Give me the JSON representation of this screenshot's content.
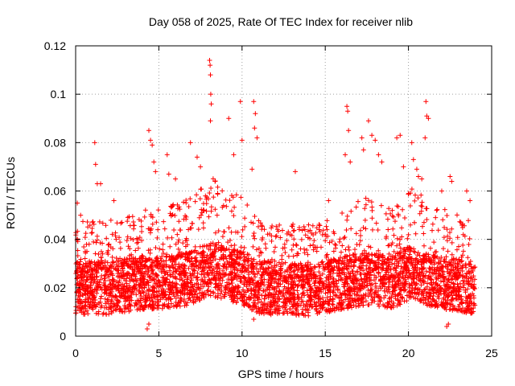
{
  "chart_data": {
    "type": "scatter",
    "title": "Day 058 of 2025, Rate Of TEC Index for receiver nlib",
    "xlabel": "GPS time / hours",
    "ylabel": "ROTI / TECUs",
    "xlim": [
      0,
      25
    ],
    "ylim": [
      0,
      0.12
    ],
    "x_ticks": [
      0,
      5,
      10,
      15,
      20,
      25
    ],
    "x_tick_labels": [
      "0",
      "5",
      "10",
      "15",
      "20",
      "25"
    ],
    "y_ticks": [
      0,
      0.02,
      0.04,
      0.06,
      0.08,
      0.1,
      0.12
    ],
    "y_tick_labels": [
      "0",
      "0.02",
      "0.04",
      "0.06",
      "0.08",
      "0.1",
      "0.12"
    ],
    "grid": true,
    "marker": "+",
    "color": "#ff0000",
    "series": [
      {
        "name": "ROTI",
        "baseline_profile": [
          [
            0.0,
            0.02
          ],
          [
            2.0,
            0.02
          ],
          [
            4.0,
            0.022
          ],
          [
            5.0,
            0.022
          ],
          [
            7.0,
            0.024
          ],
          [
            8.0,
            0.028
          ],
          [
            9.0,
            0.026
          ],
          [
            10.0,
            0.024
          ],
          [
            11.0,
            0.02
          ],
          [
            14.0,
            0.019
          ],
          [
            16.0,
            0.022
          ],
          [
            17.5,
            0.024
          ],
          [
            19.0,
            0.022
          ],
          [
            20.0,
            0.026
          ],
          [
            21.0,
            0.024
          ],
          [
            22.0,
            0.022
          ],
          [
            24.0,
            0.02
          ]
        ],
        "points": [
          [
            0.1,
            0.055
          ],
          [
            0.3,
            0.05
          ],
          [
            1.15,
            0.08
          ],
          [
            1.2,
            0.071
          ],
          [
            1.3,
            0.063
          ],
          [
            1.5,
            0.063
          ],
          [
            2.3,
            0.056
          ],
          [
            4.4,
            0.085
          ],
          [
            4.5,
            0.081
          ],
          [
            4.6,
            0.079
          ],
          [
            4.7,
            0.072
          ],
          [
            4.8,
            0.068
          ],
          [
            5.5,
            0.075
          ],
          [
            5.6,
            0.067
          ],
          [
            6.0,
            0.065
          ],
          [
            6.9,
            0.08
          ],
          [
            7.3,
            0.074
          ],
          [
            7.5,
            0.07
          ],
          [
            8.05,
            0.114
          ],
          [
            8.08,
            0.112
          ],
          [
            8.1,
            0.108
          ],
          [
            8.12,
            0.1
          ],
          [
            8.15,
            0.096
          ],
          [
            8.1,
            0.089
          ],
          [
            9.2,
            0.09
          ],
          [
            9.5,
            0.075
          ],
          [
            9.9,
            0.097
          ],
          [
            10.0,
            0.081
          ],
          [
            10.7,
            0.097
          ],
          [
            10.8,
            0.092
          ],
          [
            10.75,
            0.086
          ],
          [
            10.9,
            0.082
          ],
          [
            10.6,
            0.069
          ],
          [
            13.2,
            0.068
          ],
          [
            14.0,
            0.046
          ],
          [
            15.2,
            0.056
          ],
          [
            16.3,
            0.095
          ],
          [
            16.35,
            0.093
          ],
          [
            16.4,
            0.085
          ],
          [
            16.2,
            0.075
          ],
          [
            16.5,
            0.072
          ],
          [
            17.2,
            0.082
          ],
          [
            17.3,
            0.077
          ],
          [
            17.6,
            0.089
          ],
          [
            17.8,
            0.083
          ],
          [
            18.0,
            0.081
          ],
          [
            18.2,
            0.075
          ],
          [
            18.4,
            0.072
          ],
          [
            19.3,
            0.082
          ],
          [
            19.5,
            0.083
          ],
          [
            19.7,
            0.07
          ],
          [
            20.2,
            0.08
          ],
          [
            20.3,
            0.073
          ],
          [
            20.5,
            0.069
          ],
          [
            20.6,
            0.066
          ],
          [
            20.8,
            0.065
          ],
          [
            21.05,
            0.097
          ],
          [
            21.1,
            0.091
          ],
          [
            21.2,
            0.09
          ],
          [
            21.0,
            0.082
          ],
          [
            22.0,
            0.06
          ],
          [
            22.5,
            0.066
          ],
          [
            22.6,
            0.064
          ],
          [
            23.5,
            0.06
          ],
          [
            23.7,
            0.056
          ],
          [
            4.3,
            0.003
          ],
          [
            4.4,
            0.005
          ],
          [
            22.3,
            0.004
          ],
          [
            22.4,
            0.005
          ],
          [
            10.7,
            0.007
          ]
        ]
      }
    ]
  }
}
